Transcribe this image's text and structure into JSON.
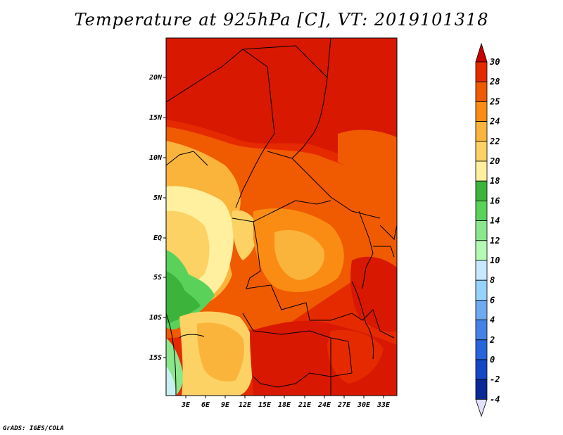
{
  "title": "Temperature at 925hPa [C], VT: 2019101318",
  "credit": "GrADS: IGES/COLA",
  "map": {
    "lat_labels": [
      "20N",
      "15N",
      "10N",
      "5N",
      "EQ",
      "5S",
      "10S",
      "15S"
    ],
    "lon_labels": [
      "3E",
      "6E",
      "9E",
      "12E",
      "15E",
      "18E",
      "21E",
      "24E",
      "27E",
      "30E",
      "33E"
    ],
    "lon_range": [
      0,
      35
    ],
    "lat_range": [
      -20,
      25
    ]
  },
  "colorbar": {
    "levels": [
      "30",
      "28",
      "25",
      "24",
      "22",
      "20",
      "18",
      "16",
      "14",
      "12",
      "10",
      "8",
      "6",
      "4",
      "2",
      "0",
      "-2",
      "-4"
    ],
    "colors": [
      "#c80000",
      "#e62a00",
      "#f05a00",
      "#fa8c14",
      "#fab43c",
      "#fcd264",
      "#fff0a0",
      "#3cb43c",
      "#5ad25a",
      "#8ce68c",
      "#b4fab4",
      "#c8e8ff",
      "#96d2fa",
      "#6eaaf0",
      "#4682e6",
      "#2864dc",
      "#1446c8",
      "#0a2896"
    ],
    "top_color": "#c80000",
    "bottom_color": "#e0e0ff"
  }
}
